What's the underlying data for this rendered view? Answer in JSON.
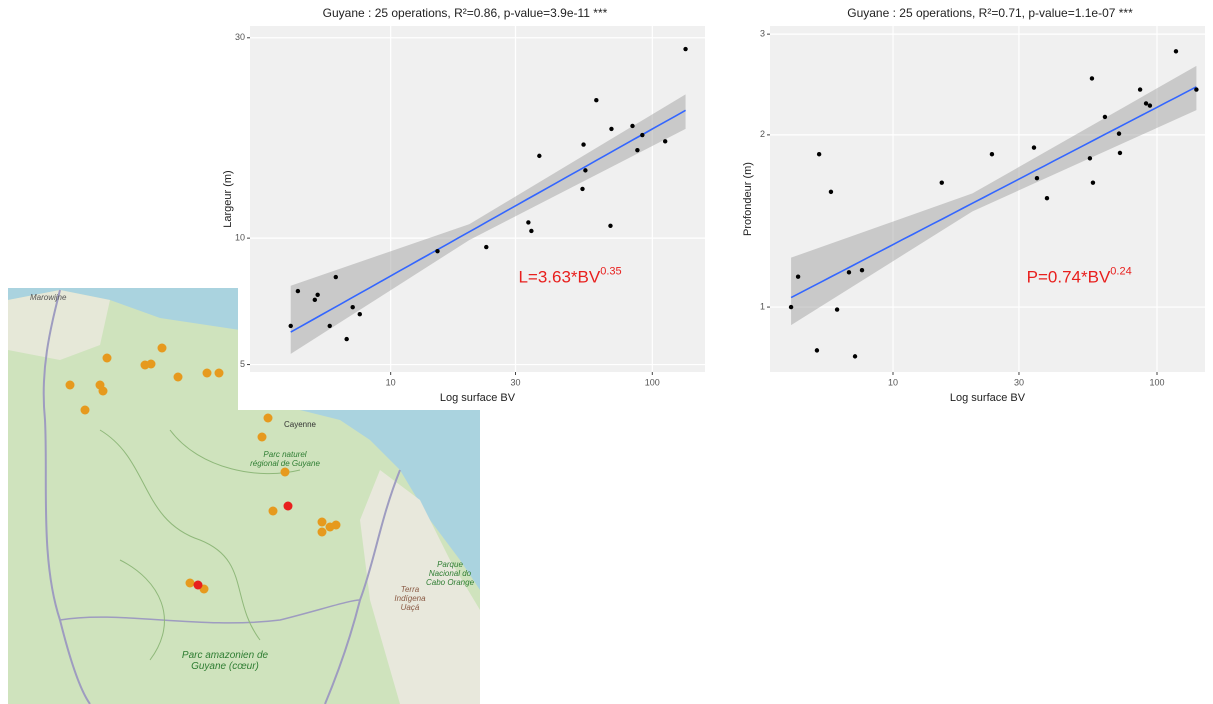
{
  "chart_data": [
    {
      "type": "scatter",
      "title": "Guyane : 25 operations, R²=0.86, p-value=3.9e-11 ***",
      "x_label": "Log surface BV",
      "y_label": "Largeur (m)",
      "x": [
        4.15,
        4.42,
        5.13,
        5.26,
        6.17,
        5.85,
        6.79,
        7.16,
        7.62,
        15.1,
        23.2,
        33.6,
        34.5,
        37.0,
        54.1,
        55.5,
        54.6,
        61.1,
        69.2,
        69.8,
        84.0,
        87.7,
        91.6,
        112,
        134
      ],
      "y": [
        6.18,
        7.48,
        7.13,
        7.33,
        8.08,
        6.18,
        5.75,
        6.85,
        6.59,
        9.31,
        9.52,
        10.9,
        10.4,
        15.7,
        13.1,
        14.5,
        16.7,
        21.3,
        10.7,
        18.2,
        18.5,
        16.2,
        17.6,
        17.0,
        28.2
      ],
      "color": "#000000",
      "xlim": [
        2.9,
        159
      ],
      "ylim": [
        4.8,
        32
      ],
      "xticks": [
        10,
        30,
        100
      ],
      "yticks": [
        5,
        10,
        30
      ],
      "log_x": true,
      "log_y": true,
      "grid": true,
      "fit": {
        "coefficient": 3.63,
        "exponent": 0.35,
        "color": "#3366ff"
      },
      "band": {
        "x": [
          4.15,
          20,
          134
        ],
        "lower": [
          5.3,
          9.9,
          18.2
        ],
        "upper": [
          7.7,
          10.8,
          22.0
        ],
        "color": "#999999"
      },
      "annotation": {
        "text": "L=3.63*BV",
        "superscript": "0.35",
        "color": "#e8201e"
      }
    },
    {
      "type": "scatter",
      "title": "Guyane : 25 operations, R²=0.71, p-value=1.1e-07 ***",
      "x_label": "Log surface BV",
      "y_label": "Profondeur (m)",
      "x": [
        4.11,
        4.37,
        5.15,
        5.25,
        5.82,
        6.14,
        6.81,
        7.18,
        7.63,
        15.3,
        23.7,
        34.2,
        35.1,
        38.3,
        55.7,
        57.2,
        56.7,
        63.5,
        71.8,
        72.4,
        86.3,
        90.9,
        94.0,
        118,
        141
      ],
      "y": [
        1.0,
        1.13,
        0.84,
        1.85,
        1.59,
        0.99,
        1.15,
        0.82,
        1.16,
        1.65,
        1.85,
        1.9,
        1.68,
        1.55,
        1.82,
        1.65,
        2.51,
        2.15,
        2.01,
        1.86,
        2.4,
        2.27,
        2.25,
        2.8,
        2.4
      ],
      "color": "#000000",
      "xlim": [
        3.42,
        152
      ],
      "ylim": [
        0.77,
        3.1
      ],
      "xticks": [
        10,
        30,
        100
      ],
      "yticks": [
        1,
        2,
        3
      ],
      "log_x": true,
      "log_y": true,
      "grid": true,
      "fit": {
        "coefficient": 0.74,
        "exponent": 0.24,
        "color": "#3366ff"
      },
      "band": {
        "x": [
          4.11,
          20,
          141
        ],
        "lower": [
          0.93,
          1.47,
          2.21
        ],
        "upper": [
          1.22,
          1.58,
          2.64
        ],
        "color": "#999999"
      },
      "annotation": {
        "text": "P=0.74*BV",
        "superscript": "0.24",
        "color": "#e8201e"
      }
    }
  ],
  "map": {
    "labels": [
      "Marowijne",
      "Cayenne",
      "Parc naturel régional de Guyane",
      "Parque Nacional do Cabo Orange",
      "Terra Indígena Uaçá",
      "Parc amazonien de Guyane (cœur)"
    ]
  }
}
